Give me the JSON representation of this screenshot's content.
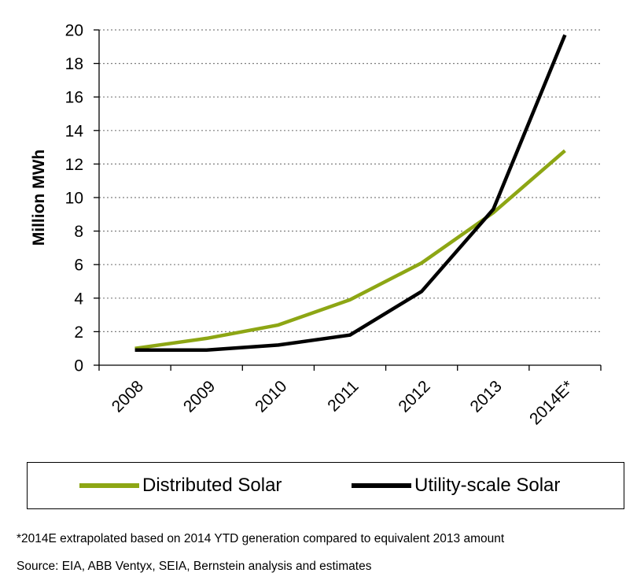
{
  "chart_data": {
    "type": "line",
    "categories": [
      "2008",
      "2009",
      "2010",
      "2011",
      "2012",
      "2013",
      "2014E*"
    ],
    "series": [
      {
        "name": "Distributed Solar",
        "color": "#8da614",
        "values": [
          1.0,
          1.6,
          2.4,
          3.9,
          6.1,
          9.1,
          12.8
        ]
      },
      {
        "name": "Utility-scale Solar",
        "color": "#000000",
        "values": [
          0.9,
          0.9,
          1.2,
          1.8,
          4.4,
          9.3,
          19.7
        ]
      }
    ],
    "ylabel": "Million MWh",
    "ylim": [
      0,
      20
    ],
    "yticks": [
      0,
      2,
      4,
      6,
      8,
      10,
      12,
      14,
      16,
      18,
      20
    ],
    "grid": "horizontal-dotted",
    "legend_position": "bottom"
  },
  "footnote": "*2014E extrapolated based on 2014 YTD generation compared to equivalent 2013 amount",
  "source": "Source: EIA, ABB Ventyx, SEIA, Bernstein analysis and estimates"
}
